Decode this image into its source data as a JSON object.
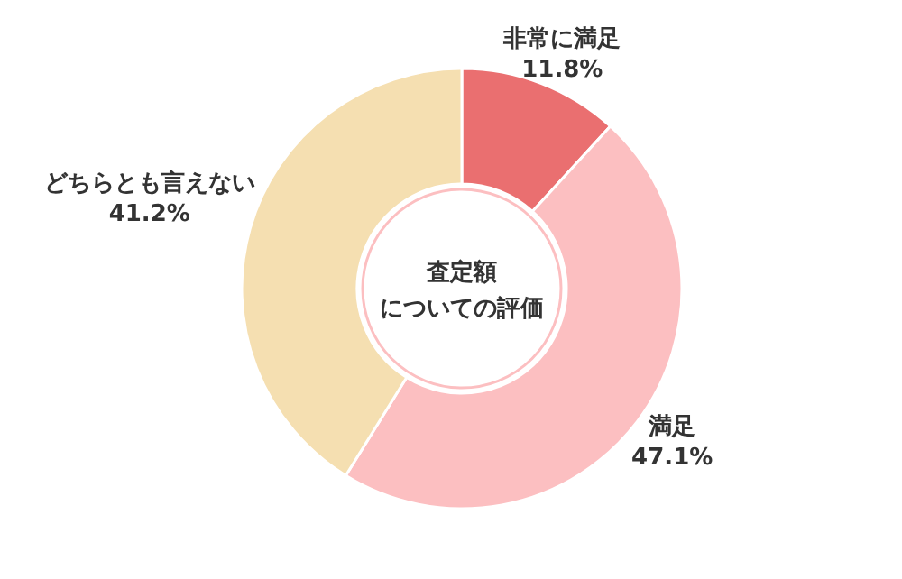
{
  "chart_data": {
    "type": "donut",
    "title": "査定額",
    "subtitle": "についての評価",
    "categories": [
      "非常に満足",
      "満足",
      "どちらとも言えない"
    ],
    "values": [
      11.8,
      47.1,
      41.2
    ],
    "value_labels": [
      "11.8%",
      "47.1%",
      "41.2%"
    ],
    "colors": [
      "#ea6f70",
      "#fcbfc1",
      "#f5dfb1"
    ],
    "legend": false
  }
}
